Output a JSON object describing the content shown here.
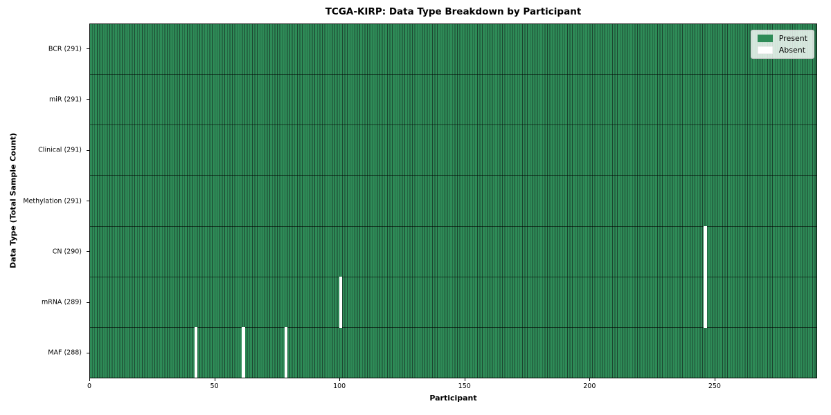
{
  "colors": {
    "present": "#2e8b57",
    "absent": "#ffffff",
    "cell_edge": "#1c4530",
    "row_separator": "#1e3326",
    "axis_frame": "#000000",
    "legend_background": "#dfe9e2",
    "figure_background": "#ffffff"
  },
  "chart_data": {
    "type": "heatmap",
    "title": "TCGA-KIRP: Data Type Breakdown by Participant",
    "xlabel": "Participant",
    "ylabel": "Data Type (Total Sample Count)",
    "n_participants": 291,
    "xlim": [
      0,
      291
    ],
    "x_ticks": [
      0,
      50,
      100,
      150,
      200,
      250
    ],
    "grid": false,
    "legend": {
      "position": "upper right",
      "entries": [
        {
          "label": "Present",
          "color": "#2e8b57"
        },
        {
          "label": "Absent",
          "color": "#ffffff"
        }
      ]
    },
    "rows": [
      {
        "label": "BCR (291)",
        "data_type": "BCR",
        "total": 291,
        "missing_participants": []
      },
      {
        "label": "miR (291)",
        "data_type": "miR",
        "total": 291,
        "missing_participants": []
      },
      {
        "label": "Clinical (291)",
        "data_type": "Clinical",
        "total": 291,
        "missing_participants": []
      },
      {
        "label": "Methylation (291)",
        "data_type": "Methylation",
        "total": 291,
        "missing_participants": []
      },
      {
        "label": "CN (290)",
        "data_type": "CN",
        "total": 290,
        "missing_participants": [
          246
        ]
      },
      {
        "label": "mRNA (289)",
        "data_type": "mRNA",
        "total": 289,
        "missing_participants": [
          100,
          246
        ]
      },
      {
        "label": "MAF (288)",
        "data_type": "MAF",
        "total": 288,
        "missing_participants": [
          42,
          61,
          78
        ]
      }
    ]
  }
}
